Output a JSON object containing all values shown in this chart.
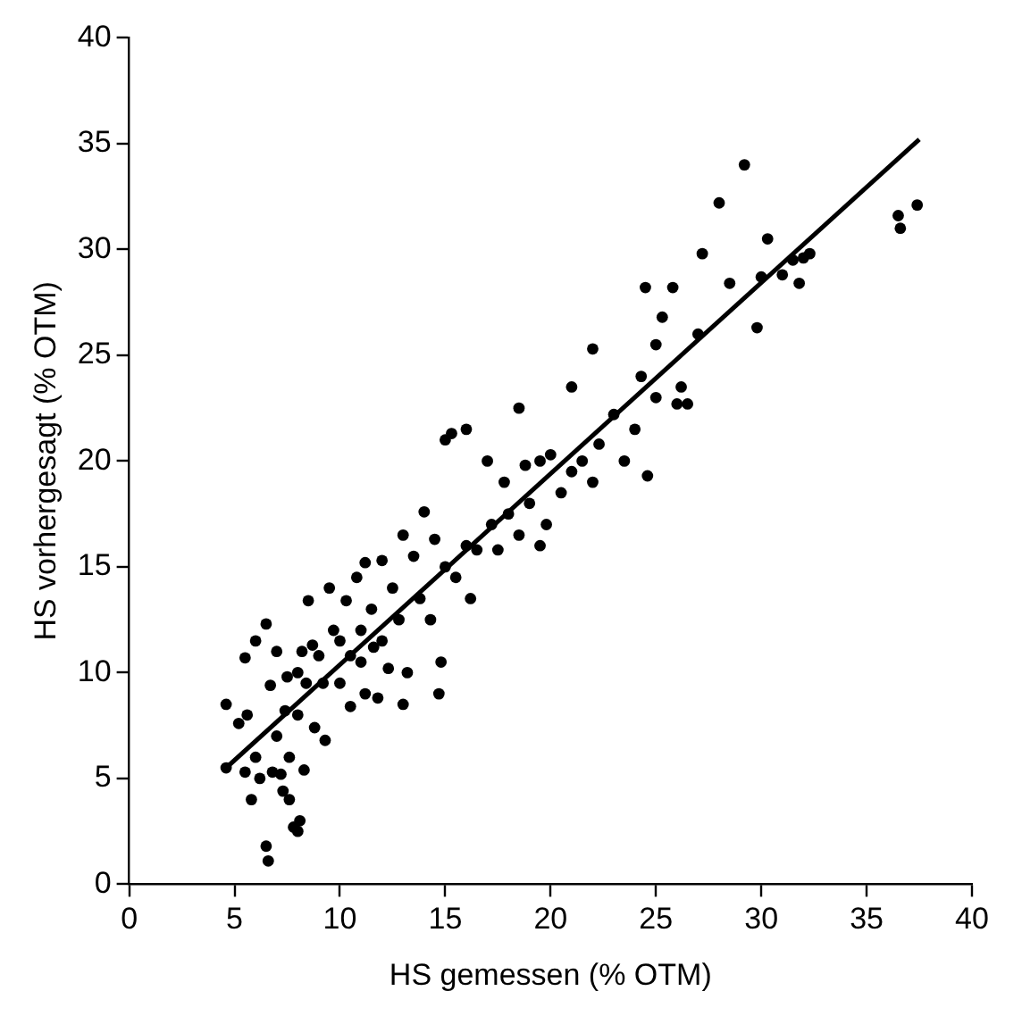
{
  "chart_data": {
    "type": "scatter",
    "xlabel": "HS gemessen (% OTM)",
    "ylabel": "HS vorhergesagt (% OTM)",
    "xlim": [
      0,
      40
    ],
    "ylim": [
      0,
      40
    ],
    "xticks": [
      0,
      5,
      10,
      15,
      20,
      25,
      30,
      35,
      40
    ],
    "yticks": [
      0,
      5,
      10,
      15,
      20,
      25,
      30,
      35,
      40
    ],
    "grid": false,
    "legend": false,
    "marker": "circle",
    "series": [
      {
        "color": "#000000",
        "x": [
          4.6,
          4.6,
          5.2,
          5.5,
          5.6,
          5.8,
          5.5,
          6,
          6,
          6.5,
          6.2,
          6.5,
          6.6,
          6.7,
          6.8,
          7,
          7,
          7.2,
          7.3,
          7.4,
          7.5,
          7.6,
          7.6,
          7.8,
          8,
          8.1,
          8,
          8,
          8.2,
          8.3,
          8.4,
          8.5,
          8.8,
          8.7,
          9,
          9.2,
          9.3,
          9.5,
          9.7,
          10,
          10,
          10.3,
          10.5,
          10.5,
          10.8,
          11,
          11,
          11.2,
          11.2,
          11.5,
          11.6,
          11.8,
          12,
          12,
          12.3,
          12.5,
          12.8,
          13,
          13,
          13.2,
          13.5,
          13.8,
          14,
          14.3,
          14.5,
          14.8,
          14.7,
          15,
          15.3,
          15,
          15.5,
          16,
          16,
          16.2,
          16.5,
          17,
          17.2,
          17.5,
          17.8,
          18,
          18.5,
          18.5,
          18.8,
          19,
          19.5,
          19.5,
          19.8,
          20,
          20.5,
          21,
          21,
          21.5,
          22,
          22,
          22.3,
          23,
          23.5,
          24,
          24.3,
          24.5,
          24.6,
          25,
          25,
          25.3,
          25.8,
          26,
          26.2,
          26.5,
          27,
          27.2,
          28,
          28.5,
          29.2,
          29.8,
          30,
          30.3,
          31,
          31.5,
          31.8,
          32,
          32.3,
          36.5,
          36.6,
          37.4
        ],
        "values": [
          8.5,
          5.5,
          7.6,
          10.7,
          8,
          4,
          5.3,
          11.5,
          6,
          12.3,
          5,
          1.8,
          1.1,
          9.4,
          5.3,
          11,
          7,
          5.2,
          4.4,
          8.2,
          9.8,
          6,
          4,
          2.7,
          2.5,
          3,
          8,
          10,
          11,
          5.4,
          9.5,
          13.4,
          7.4,
          11.3,
          10.8,
          9.5,
          6.8,
          14,
          12,
          11.5,
          9.5,
          13.4,
          10.8,
          8.4,
          14.5,
          12,
          10.5,
          9,
          15.2,
          13,
          11.2,
          8.8,
          15.3,
          11.5,
          10.2,
          14,
          12.5,
          16.5,
          8.5,
          10,
          15.5,
          13.5,
          17.6,
          12.5,
          16.3,
          10.5,
          9,
          21,
          21.3,
          15,
          14.5,
          16,
          21.5,
          13.5,
          15.8,
          20,
          17,
          15.8,
          19,
          17.5,
          22.5,
          16.5,
          19.8,
          18,
          20,
          16,
          17,
          20.3,
          18.5,
          19.5,
          23.5,
          20,
          25.3,
          19,
          20.8,
          22.2,
          20,
          21.5,
          24,
          28.2,
          19.3,
          23,
          25.5,
          26.8,
          28.2,
          22.7,
          23.5,
          22.7,
          26,
          29.8,
          32.2,
          28.4,
          34,
          26.3,
          28.7,
          30.5,
          28.8,
          29.5,
          28.4,
          29.6,
          29.8,
          31.6,
          31,
          32.1
        ]
      },
      {
        "type": "line",
        "color": "#000000",
        "marker": "none",
        "x": [
          4.6,
          37.5
        ],
        "values": [
          5.5,
          35.2
        ]
      }
    ]
  }
}
